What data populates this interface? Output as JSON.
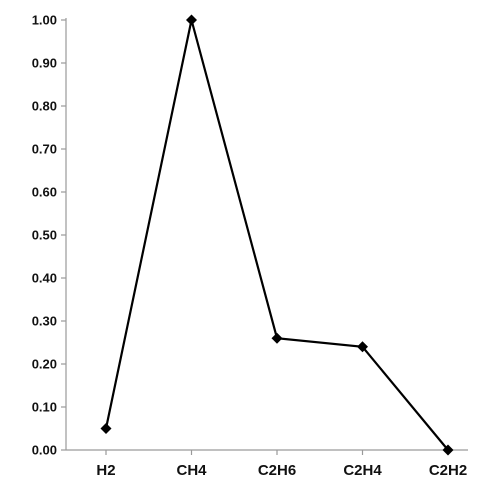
{
  "chart_data": {
    "type": "line",
    "categories": [
      "H2",
      "CH4",
      "C2H6",
      "C2H4",
      "C2H2"
    ],
    "series": [
      {
        "values": [
          0.05,
          1.0,
          0.26,
          0.24,
          0.0
        ]
      }
    ],
    "ylim": [
      0,
      1.0
    ],
    "yticks": [
      "0.00",
      "0.10",
      "0.20",
      "0.30",
      "0.40",
      "0.50",
      "0.60",
      "0.70",
      "0.80",
      "0.90",
      "1.00"
    ],
    "grid": false,
    "legend": "none",
    "colors": {
      "line": "#000000",
      "axis": "#9a9a9a"
    },
    "title": "",
    "xlabel": "",
    "ylabel": ""
  }
}
